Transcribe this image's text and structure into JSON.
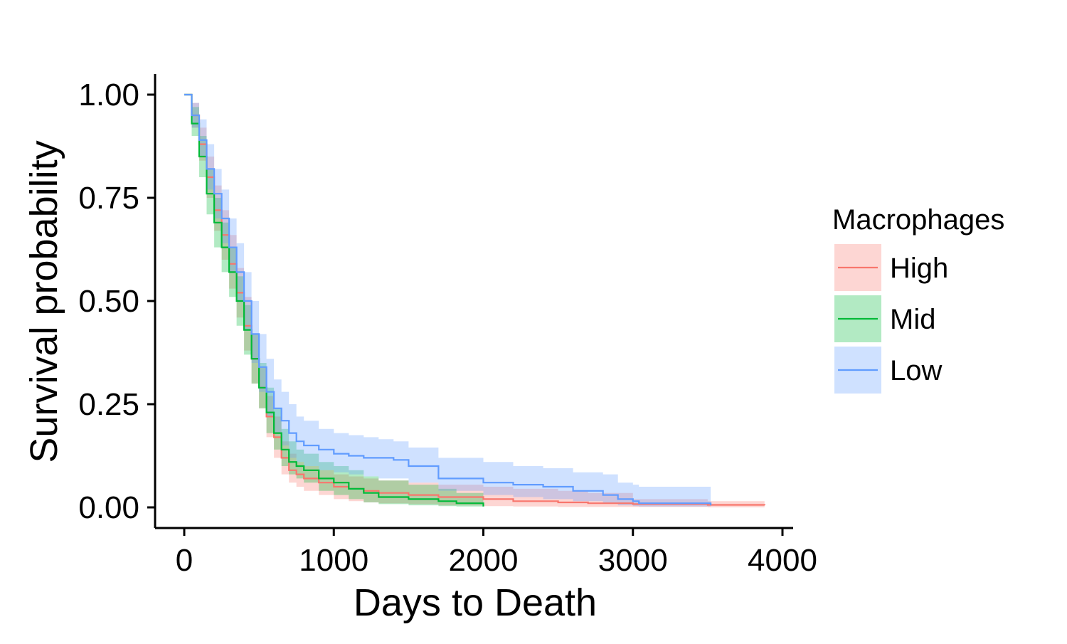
{
  "chart_data": {
    "type": "line",
    "subtype": "kaplan-meier survival curves with confidence bands",
    "xlabel": "Days to Death",
    "ylabel": "Survival probability",
    "xlim": [
      0,
      4000
    ],
    "ylim": [
      0,
      1
    ],
    "x_ticks": [
      "0",
      "1000",
      "2000",
      "3000",
      "4000"
    ],
    "y_ticks": [
      "0.00",
      "0.25",
      "0.50",
      "0.75",
      "1.00"
    ],
    "grid": false,
    "legend": {
      "title": "Macrophages",
      "position": "right"
    },
    "series": [
      {
        "name": "High",
        "color": "#F8766D",
        "band_color": "#F8766D",
        "x": [
          0,
          50,
          100,
          150,
          200,
          250,
          300,
          350,
          400,
          450,
          500,
          550,
          600,
          650,
          700,
          750,
          800,
          900,
          1000,
          1100,
          1200,
          1300,
          1500,
          1700,
          2000,
          2200,
          2500,
          2700,
          3000,
          3500,
          3880
        ],
        "y": [
          1.0,
          0.95,
          0.88,
          0.8,
          0.72,
          0.66,
          0.59,
          0.52,
          0.44,
          0.36,
          0.29,
          0.22,
          0.17,
          0.12,
          0.09,
          0.08,
          0.07,
          0.06,
          0.05,
          0.045,
          0.04,
          0.035,
          0.03,
          0.025,
          0.02,
          0.015,
          0.012,
          0.01,
          0.008,
          0.006,
          0.005
        ],
        "lower": [
          1.0,
          0.92,
          0.84,
          0.75,
          0.67,
          0.6,
          0.53,
          0.46,
          0.38,
          0.3,
          0.24,
          0.17,
          0.12,
          0.08,
          0.06,
          0.05,
          0.04,
          0.03,
          0.02,
          0.015,
          0.012,
          0.01,
          0.008,
          0.005,
          0.003,
          0.002,
          0.001,
          0.001,
          0.001,
          0.0,
          0.0
        ],
        "upper": [
          1.0,
          0.98,
          0.92,
          0.85,
          0.78,
          0.72,
          0.66,
          0.58,
          0.51,
          0.42,
          0.34,
          0.27,
          0.22,
          0.16,
          0.13,
          0.11,
          0.1,
          0.09,
          0.08,
          0.075,
          0.07,
          0.065,
          0.06,
          0.055,
          0.05,
          0.045,
          0.04,
          0.035,
          0.02,
          0.015,
          0.01
        ]
      },
      {
        "name": "Mid",
        "color": "#00BA38",
        "band_color": "#00BA38",
        "x": [
          0,
          50,
          100,
          150,
          200,
          250,
          300,
          350,
          400,
          450,
          500,
          550,
          600,
          650,
          700,
          750,
          800,
          900,
          1000,
          1100,
          1200,
          1300,
          1500,
          1700,
          1820,
          2000
        ],
        "y": [
          1.0,
          0.93,
          0.85,
          0.76,
          0.69,
          0.63,
          0.57,
          0.5,
          0.43,
          0.36,
          0.29,
          0.23,
          0.18,
          0.14,
          0.11,
          0.1,
          0.09,
          0.07,
          0.06,
          0.045,
          0.035,
          0.025,
          0.02,
          0.015,
          0.01,
          0.002
        ],
        "lower": [
          1.0,
          0.9,
          0.8,
          0.71,
          0.63,
          0.57,
          0.51,
          0.44,
          0.37,
          0.3,
          0.24,
          0.18,
          0.14,
          0.1,
          0.08,
          0.07,
          0.06,
          0.04,
          0.03,
          0.02,
          0.012,
          0.008,
          0.005,
          0.003,
          0.002,
          0.0
        ],
        "upper": [
          1.0,
          0.97,
          0.9,
          0.82,
          0.75,
          0.69,
          0.63,
          0.56,
          0.49,
          0.42,
          0.35,
          0.29,
          0.24,
          0.19,
          0.16,
          0.14,
          0.13,
          0.11,
          0.1,
          0.09,
          0.075,
          0.065,
          0.055,
          0.045,
          0.035,
          0.03
        ]
      },
      {
        "name": "Low",
        "color": "#619CFF",
        "band_color": "#619CFF",
        "x": [
          0,
          50,
          100,
          150,
          200,
          250,
          300,
          350,
          400,
          450,
          500,
          550,
          600,
          650,
          700,
          750,
          800,
          900,
          1000,
          1100,
          1200,
          1300,
          1400,
          1500,
          1700,
          2000,
          2200,
          2400,
          2600,
          2800,
          2900,
          3000,
          3040,
          3520
        ],
        "y": [
          1.0,
          0.95,
          0.89,
          0.82,
          0.76,
          0.7,
          0.63,
          0.57,
          0.5,
          0.42,
          0.34,
          0.28,
          0.24,
          0.21,
          0.18,
          0.16,
          0.15,
          0.14,
          0.13,
          0.125,
          0.12,
          0.12,
          0.115,
          0.1,
          0.07,
          0.06,
          0.055,
          0.05,
          0.04,
          0.03,
          0.02,
          0.015,
          0.01,
          0.005
        ],
        "lower": [
          1.0,
          0.92,
          0.85,
          0.77,
          0.7,
          0.64,
          0.57,
          0.5,
          0.43,
          0.35,
          0.28,
          0.22,
          0.18,
          0.15,
          0.12,
          0.11,
          0.1,
          0.09,
          0.085,
          0.08,
          0.075,
          0.07,
          0.07,
          0.06,
          0.04,
          0.03,
          0.025,
          0.02,
          0.015,
          0.01,
          0.005,
          0.003,
          0.002,
          0.001
        ],
        "upper": [
          1.0,
          0.98,
          0.94,
          0.88,
          0.82,
          0.77,
          0.7,
          0.64,
          0.57,
          0.5,
          0.42,
          0.36,
          0.31,
          0.28,
          0.25,
          0.22,
          0.21,
          0.19,
          0.18,
          0.175,
          0.17,
          0.165,
          0.16,
          0.145,
          0.12,
          0.11,
          0.1,
          0.095,
          0.085,
          0.08,
          0.06,
          0.055,
          0.05,
          0.045
        ]
      }
    ]
  }
}
